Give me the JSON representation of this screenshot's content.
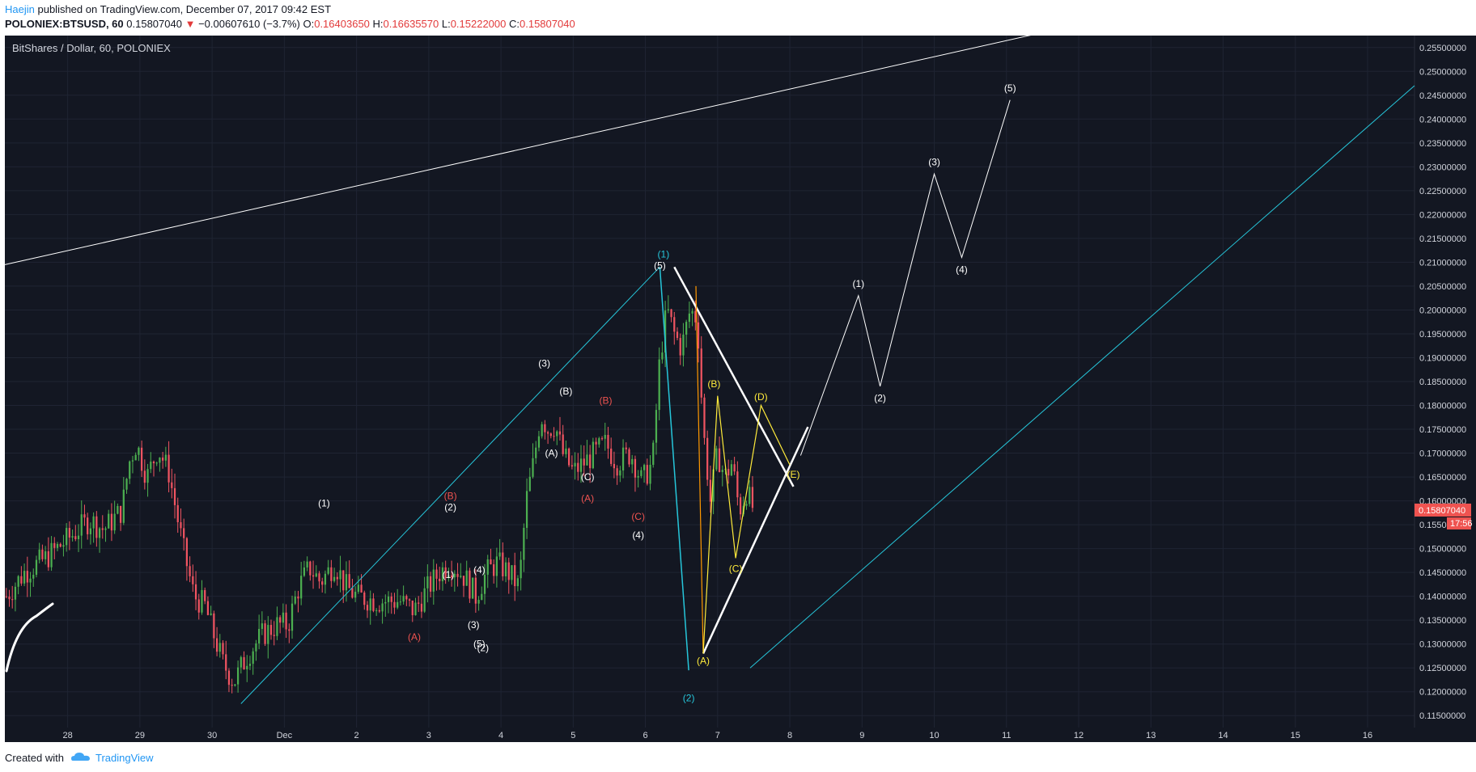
{
  "header": {
    "author": "Haejin",
    "published_text": "published on TradingView.com, December 07, 2017 09:42 EST",
    "symbol": "POLONIEX:BTSUSD, 60",
    "last": "0.15807040",
    "change": "−0.00607610 (−3.7%)",
    "o_label": "O:",
    "o_value": "0.16403650",
    "h_label": "H:",
    "h_value": "0.16635570",
    "l_label": "L:",
    "l_value": "0.15222000",
    "c_label": "C:",
    "c_value": "0.15807040"
  },
  "chart_title": "BitShares / Dollar, 60, POLONIEX",
  "footer": {
    "created_with": "Created with",
    "brand": "TradingView"
  },
  "colors": {
    "background": "#131722",
    "grid": "#1f2433",
    "up": "#4caf50",
    "down": "#f05461",
    "cyan": "#26c6da",
    "white": "#ffffff",
    "yellow": "#ffeb3b",
    "orange": "#ff9800",
    "red_label": "#ef5350",
    "price_badge": "#ef5350"
  },
  "chart_data": {
    "type": "candlestick",
    "price_axis": {
      "min": 0.1125,
      "max": 0.2575,
      "ticks": [
        "0.11500000",
        "0.12000000",
        "0.12500000",
        "0.13000000",
        "0.13500000",
        "0.14000000",
        "0.14500000",
        "0.15000000",
        "0.15500000",
        "0.16000000",
        "0.16500000",
        "0.17000000",
        "0.17500000",
        "0.18000000",
        "0.18500000",
        "0.19000000",
        "0.19500000",
        "0.20000000",
        "0.20500000",
        "0.21000000",
        "0.21500000",
        "0.22000000",
        "0.22500000",
        "0.23000000",
        "0.23500000",
        "0.24000000",
        "0.24500000",
        "0.25000000",
        "0.25500000"
      ],
      "current_price": "0.15807040",
      "countdown": "17:56"
    },
    "time_axis": {
      "min": -0.87,
      "max": 18.65,
      "ticks": [
        {
          "x": 0,
          "label": "28"
        },
        {
          "x": 1,
          "label": "29"
        },
        {
          "x": 2,
          "label": "30"
        },
        {
          "x": 3,
          "label": "Dec"
        },
        {
          "x": 4,
          "label": "2"
        },
        {
          "x": 5,
          "label": "3"
        },
        {
          "x": 6,
          "label": "4"
        },
        {
          "x": 7,
          "label": "5"
        },
        {
          "x": 8,
          "label": "6"
        },
        {
          "x": 9,
          "label": "7"
        },
        {
          "x": 10,
          "label": "8"
        },
        {
          "x": 11,
          "label": "9"
        },
        {
          "x": 12,
          "label": "10"
        },
        {
          "x": 13,
          "label": "11"
        },
        {
          "x": 14,
          "label": "12"
        },
        {
          "x": 15,
          "label": "13"
        },
        {
          "x": 16,
          "label": "14"
        },
        {
          "x": 17,
          "label": "15"
        },
        {
          "x": 18,
          "label": "16"
        }
      ]
    },
    "price_path": [
      [
        -0.85,
        0.14
      ],
      [
        -0.6,
        0.145
      ],
      [
        -0.3,
        0.148
      ],
      [
        0.0,
        0.152
      ],
      [
        0.3,
        0.156
      ],
      [
        0.5,
        0.154
      ],
      [
        0.75,
        0.158
      ],
      [
        0.85,
        0.168
      ],
      [
        0.95,
        0.172
      ],
      [
        1.1,
        0.165
      ],
      [
        1.25,
        0.171
      ],
      [
        1.4,
        0.166
      ],
      [
        1.6,
        0.15
      ],
      [
        1.75,
        0.14
      ],
      [
        1.9,
        0.138
      ],
      [
        2.0,
        0.133
      ],
      [
        2.15,
        0.126
      ],
      [
        2.3,
        0.122
      ],
      [
        2.5,
        0.128
      ],
      [
        2.7,
        0.132
      ],
      [
        2.9,
        0.134
      ],
      [
        3.05,
        0.134
      ],
      [
        3.2,
        0.142
      ],
      [
        3.35,
        0.146
      ],
      [
        3.5,
        0.143
      ],
      [
        3.7,
        0.147
      ],
      [
        3.85,
        0.142
      ],
      [
        4.0,
        0.14
      ],
      [
        4.3,
        0.139
      ],
      [
        4.6,
        0.139
      ],
      [
        4.8,
        0.137
      ],
      [
        5.0,
        0.142
      ],
      [
        5.15,
        0.145
      ],
      [
        5.3,
        0.147
      ],
      [
        5.5,
        0.144
      ],
      [
        5.65,
        0.14
      ],
      [
        5.8,
        0.145
      ],
      [
        5.95,
        0.147
      ],
      [
        6.1,
        0.145
      ],
      [
        6.25,
        0.142
      ],
      [
        6.35,
        0.16
      ],
      [
        6.45,
        0.168
      ],
      [
        6.55,
        0.178
      ],
      [
        6.65,
        0.175
      ],
      [
        6.75,
        0.176
      ],
      [
        6.85,
        0.17
      ],
      [
        7.0,
        0.166
      ],
      [
        7.15,
        0.168
      ],
      [
        7.3,
        0.17
      ],
      [
        7.45,
        0.172
      ],
      [
        7.6,
        0.168
      ],
      [
        7.8,
        0.17
      ],
      [
        7.95,
        0.164
      ],
      [
        8.1,
        0.168
      ],
      [
        8.2,
        0.19
      ],
      [
        8.3,
        0.2
      ],
      [
        8.4,
        0.195
      ],
      [
        8.5,
        0.192
      ],
      [
        8.62,
        0.2
      ],
      [
        8.72,
        0.198
      ],
      [
        8.8,
        0.175
      ],
      [
        8.9,
        0.16
      ],
      [
        9.0,
        0.17
      ],
      [
        9.1,
        0.165
      ],
      [
        9.2,
        0.168
      ],
      [
        9.3,
        0.158
      ],
      [
        9.4,
        0.162
      ],
      [
        9.5,
        0.158
      ]
    ],
    "lines": [
      {
        "color": "white",
        "width": 1,
        "points": [
          [
            -0.87,
            0.2095
          ],
          [
            13.9,
            0.2595
          ]
        ]
      },
      {
        "color": "cyan",
        "width": 1,
        "points": [
          [
            9.45,
            0.125
          ],
          [
            18.65,
            0.247
          ]
        ]
      },
      {
        "color": "cyan",
        "width": 1,
        "points": [
          [
            2.4,
            0.1175
          ],
          [
            8.2,
            0.209
          ]
        ]
      },
      {
        "color": "cyan",
        "width": 1.5,
        "points": [
          [
            8.2,
            0.209
          ],
          [
            8.6,
            0.1245
          ]
        ]
      },
      {
        "color": "white",
        "width": 2.5,
        "points": [
          [
            8.4,
            0.209
          ],
          [
            10.05,
            0.163
          ]
        ]
      },
      {
        "color": "white",
        "width": 2.5,
        "points": [
          [
            8.8,
            0.128
          ],
          [
            10.25,
            0.1755
          ]
        ]
      },
      {
        "color": "orange",
        "width": 1.2,
        "points": [
          [
            8.7,
            0.205
          ],
          [
            8.8,
            0.128
          ]
        ]
      },
      {
        "color": "yellow",
        "width": 1.2,
        "points": [
          [
            8.8,
            0.128
          ],
          [
            9.0,
            0.182
          ],
          [
            9.25,
            0.148
          ],
          [
            9.6,
            0.18
          ],
          [
            10.0,
            0.1675
          ]
        ]
      },
      {
        "color": "white",
        "width": 1,
        "points": [
          [
            10.15,
            0.1695
          ],
          [
            10.95,
            0.203
          ],
          [
            11.25,
            0.184
          ],
          [
            12.0,
            0.2285
          ],
          [
            12.38,
            0.211
          ],
          [
            13.05,
            0.244
          ]
        ]
      }
    ],
    "wave_labels": [
      {
        "text": "(1)",
        "x": 8.25,
        "y": 0.2117,
        "color": "cyan"
      },
      {
        "text": "(5)",
        "x": 8.2,
        "y": 0.2093,
        "color": "white"
      },
      {
        "text": "(2)",
        "x": 8.6,
        "y": 0.1187,
        "color": "cyan"
      },
      {
        "text": "(3)",
        "x": 6.6,
        "y": 0.1888,
        "color": "white"
      },
      {
        "text": "(B)",
        "x": 6.9,
        "y": 0.183,
        "color": "white"
      },
      {
        "text": "(A)",
        "x": 6.7,
        "y": 0.17,
        "color": "white"
      },
      {
        "text": "(C)",
        "x": 7.2,
        "y": 0.165,
        "color": "white"
      },
      {
        "text": "(A)",
        "x": 7.2,
        "y": 0.1605,
        "color": "red_label"
      },
      {
        "text": "(B)",
        "x": 7.45,
        "y": 0.181,
        "color": "red_label"
      },
      {
        "text": "(C)",
        "x": 7.9,
        "y": 0.1567,
        "color": "red_label"
      },
      {
        "text": "(4)",
        "x": 7.9,
        "y": 0.1528,
        "color": "white"
      },
      {
        "text": "(1)",
        "x": 3.55,
        "y": 0.1595,
        "color": "white"
      },
      {
        "text": "(B)",
        "x": 5.3,
        "y": 0.161,
        "color": "red_label"
      },
      {
        "text": "(2)",
        "x": 5.3,
        "y": 0.1587,
        "color": "white"
      },
      {
        "text": "(4)",
        "x": 5.7,
        "y": 0.1455,
        "color": "white"
      },
      {
        "text": "(1)",
        "x": 5.27,
        "y": 0.1445,
        "color": "white"
      },
      {
        "text": "(A)",
        "x": 4.8,
        "y": 0.1315,
        "color": "red_label"
      },
      {
        "text": "(3)",
        "x": 5.62,
        "y": 0.134,
        "color": "white"
      },
      {
        "text": "(5)",
        "x": 5.7,
        "y": 0.13,
        "color": "white"
      },
      {
        "text": "(2)",
        "x": 5.75,
        "y": 0.1292,
        "color": "white"
      },
      {
        "text": "(B)",
        "x": 8.95,
        "y": 0.1845,
        "color": "yellow"
      },
      {
        "text": "(A)",
        "x": 8.8,
        "y": 0.1265,
        "color": "yellow"
      },
      {
        "text": "(C)",
        "x": 9.25,
        "y": 0.1458,
        "color": "yellow"
      },
      {
        "text": "(D)",
        "x": 9.6,
        "y": 0.1818,
        "color": "yellow"
      },
      {
        "text": "(E)",
        "x": 10.05,
        "y": 0.1655,
        "color": "yellow"
      },
      {
        "text": "(1)",
        "x": 10.95,
        "y": 0.2055,
        "color": "white"
      },
      {
        "text": "(2)",
        "x": 11.25,
        "y": 0.1815,
        "color": "white"
      },
      {
        "text": "(3)",
        "x": 12.0,
        "y": 0.231,
        "color": "white"
      },
      {
        "text": "(4)",
        "x": 12.38,
        "y": 0.2085,
        "color": "white"
      },
      {
        "text": "(5)",
        "x": 13.05,
        "y": 0.2465,
        "color": "white"
      }
    ]
  }
}
